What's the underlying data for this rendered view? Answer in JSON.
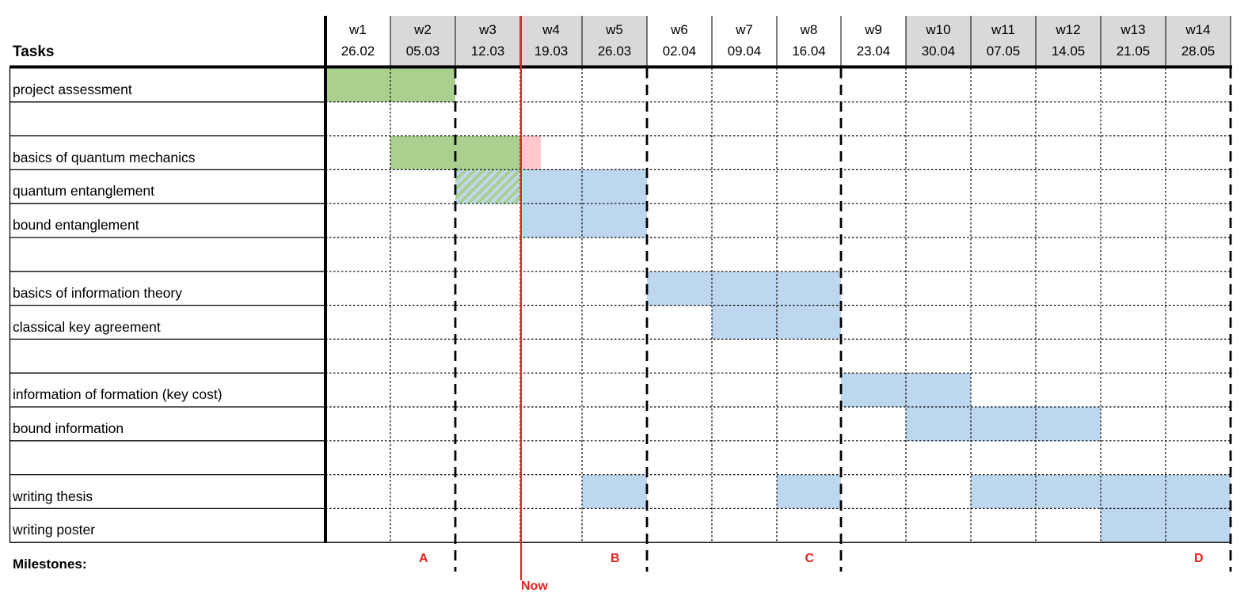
{
  "header": {
    "tasks_title": "Tasks"
  },
  "weeks": [
    {
      "label": "w1",
      "date": "26.02",
      "shaded": false
    },
    {
      "label": "w2",
      "date": "05.03",
      "shaded": true
    },
    {
      "label": "w3",
      "date": "12.03",
      "shaded": true
    },
    {
      "label": "w4",
      "date": "19.03",
      "shaded": true
    },
    {
      "label": "w5",
      "date": "26.03",
      "shaded": true
    },
    {
      "label": "w6",
      "date": "02.04",
      "shaded": false
    },
    {
      "label": "w7",
      "date": "09.04",
      "shaded": false
    },
    {
      "label": "w8",
      "date": "16.04",
      "shaded": false
    },
    {
      "label": "w9",
      "date": "23.04",
      "shaded": false
    },
    {
      "label": "w10",
      "date": "30.04",
      "shaded": true
    },
    {
      "label": "w11",
      "date": "07.05",
      "shaded": true
    },
    {
      "label": "w12",
      "date": "14.05",
      "shaded": true
    },
    {
      "label": "w13",
      "date": "21.05",
      "shaded": true
    },
    {
      "label": "w14",
      "date": "28.05",
      "shaded": true
    }
  ],
  "tasks": [
    {
      "label": "project assessment"
    },
    {
      "label": ""
    },
    {
      "label": "basics of quantum mechanics"
    },
    {
      "label": "quantum entanglement"
    },
    {
      "label": "bound entanglement"
    },
    {
      "label": ""
    },
    {
      "label": "basics of information theory"
    },
    {
      "label": "classical key agreement"
    },
    {
      "label": ""
    },
    {
      "label": "information of formation (key cost)"
    },
    {
      "label": "bound information"
    },
    {
      "label": ""
    },
    {
      "label": "writing thesis"
    },
    {
      "label": "writing poster"
    }
  ],
  "bars": [
    {
      "row": 0,
      "start_week": 1,
      "weeks": 2,
      "status": "done"
    },
    {
      "row": 2,
      "start_week": 2,
      "weeks": 2,
      "status": "done"
    },
    {
      "row": 2,
      "start_week": 4,
      "weeks": 0.33,
      "status": "overdue"
    },
    {
      "row": 3,
      "start_week": 3,
      "weeks": 1,
      "status": "partial"
    },
    {
      "row": 3,
      "start_week": 4,
      "weeks": 2,
      "status": "planned"
    },
    {
      "row": 4,
      "start_week": 4,
      "weeks": 2,
      "status": "planned"
    },
    {
      "row": 6,
      "start_week": 6,
      "weeks": 3,
      "status": "planned"
    },
    {
      "row": 7,
      "start_week": 7,
      "weeks": 2,
      "status": "planned"
    },
    {
      "row": 9,
      "start_week": 9,
      "weeks": 2,
      "status": "planned"
    },
    {
      "row": 10,
      "start_week": 10,
      "weeks": 3,
      "status": "planned"
    },
    {
      "row": 12,
      "start_week": 5,
      "weeks": 1,
      "status": "planned"
    },
    {
      "row": 12,
      "start_week": 8,
      "weeks": 1,
      "status": "planned"
    },
    {
      "row": 12,
      "start_week": 11,
      "weeks": 4,
      "status": "planned"
    },
    {
      "row": 13,
      "start_week": 13,
      "weeks": 2,
      "status": "planned"
    }
  ],
  "milestones": {
    "title": "Milestones:",
    "items": [
      {
        "label": "A",
        "after_week": 2
      },
      {
        "label": "B",
        "after_week": 5
      },
      {
        "label": "C",
        "after_week": 8
      },
      {
        "label": "D",
        "after_week": 14
      }
    ]
  },
  "now": {
    "label": "Now",
    "after_week": 3
  },
  "colors": {
    "done": "#a9d08e",
    "planned": "#bdd7ee",
    "overdue": "#ffc7ce",
    "now_line": "#e8221e",
    "header_shade": "#d9d9d9"
  }
}
